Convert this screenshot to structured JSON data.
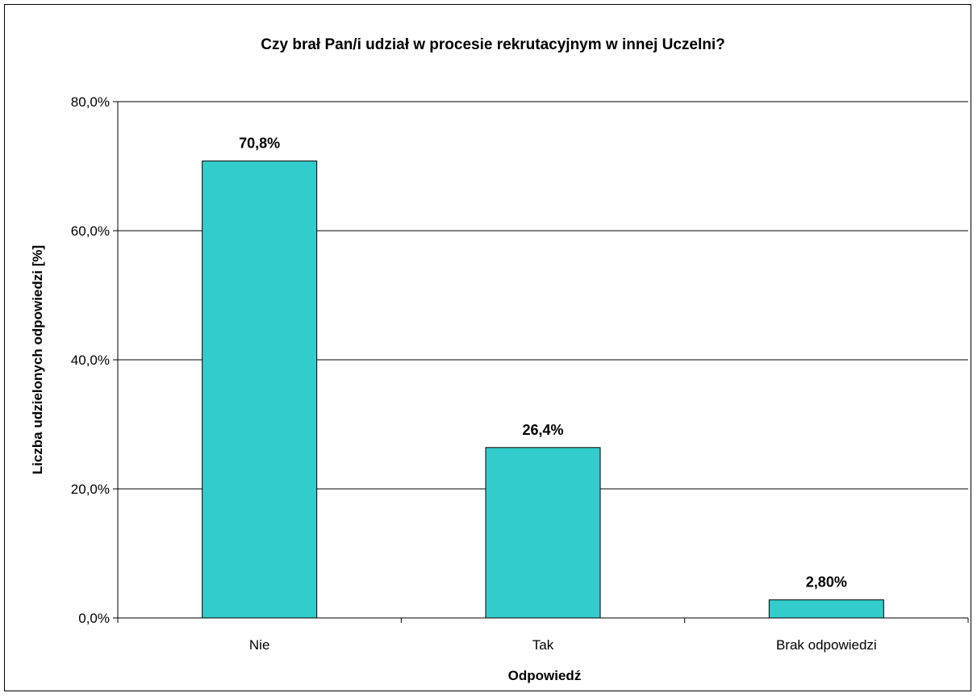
{
  "chart_data": {
    "type": "bar",
    "title": "Czy brał Pan/i udział w procesie rekrutacyjnym w innej Uczelni?",
    "xlabel": "Odpowiedź",
    "ylabel": "Liczba udzielonych odpowiedzi [%]",
    "categories": [
      "Nie",
      "Tak",
      "Brak odpowiedzi"
    ],
    "values": [
      70.8,
      26.4,
      2.8
    ],
    "data_labels": [
      "70,8%",
      "26,4%",
      "2,80%"
    ],
    "ylim": [
      0,
      80
    ],
    "yticks": [
      0,
      20,
      40,
      60,
      80
    ],
    "ytick_labels": [
      "0,0%",
      "20,0%",
      "40,0%",
      "60,0%",
      "80,0%"
    ],
    "grid": true,
    "legend": "none",
    "bar_color": "#33CCCC"
  }
}
